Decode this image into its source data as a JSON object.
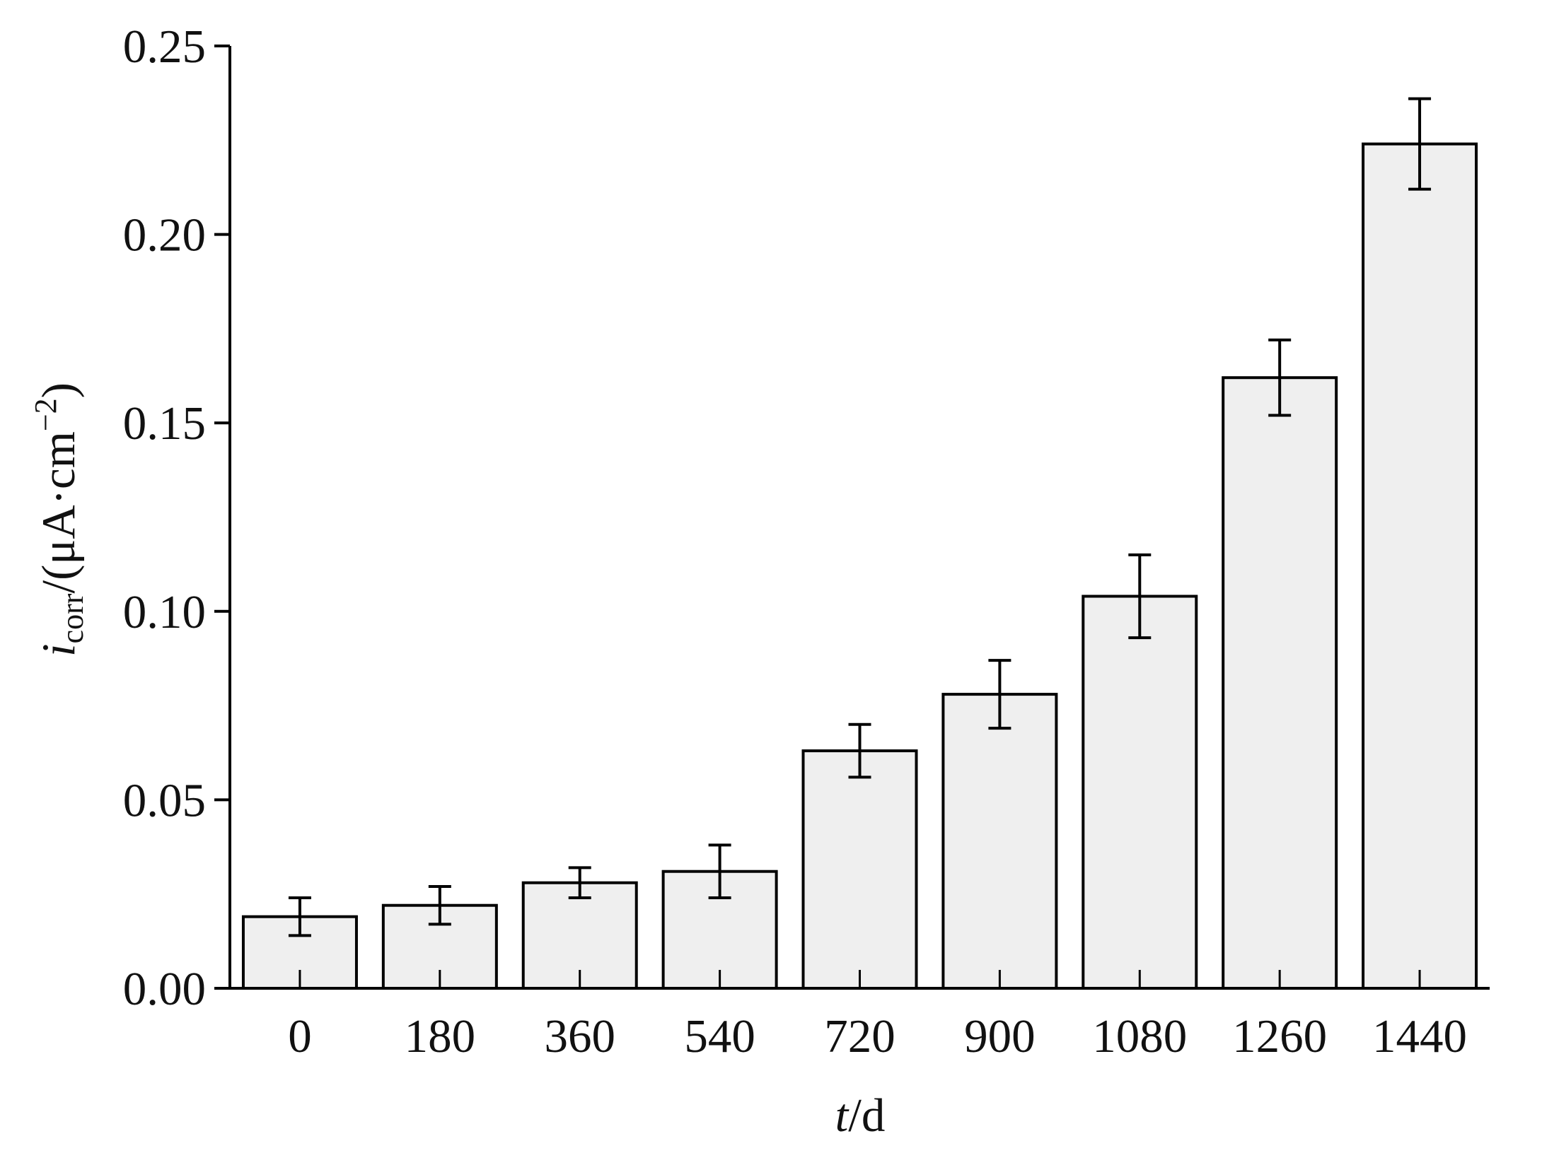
{
  "chart_data": {
    "type": "bar",
    "categories": [
      "0",
      "180",
      "360",
      "540",
      "720",
      "900",
      "1080",
      "1260",
      "1440"
    ],
    "values": [
      0.019,
      0.022,
      0.028,
      0.031,
      0.063,
      0.078,
      0.104,
      0.162,
      0.224
    ],
    "errors": [
      0.005,
      0.005,
      0.004,
      0.007,
      0.007,
      0.009,
      0.011,
      0.01,
      0.012
    ],
    "color": "#efefef",
    "ylim": [
      0,
      0.25
    ],
    "yticks": [
      {
        "value": 0,
        "label": "0.00"
      },
      {
        "value": 0.05,
        "label": "0.05"
      },
      {
        "value": 0.1,
        "label": "0.10"
      },
      {
        "value": 0.15,
        "label": "0.15"
      },
      {
        "value": 0.2,
        "label": "0.20"
      },
      {
        "value": 0.25,
        "label": "0.25"
      }
    ],
    "y_label": {
      "symbol": "i",
      "subscript": "corr",
      "unit": "/(μA·cm",
      "superscript": "−2",
      "close": ")"
    },
    "x_label": {
      "symbol": "t",
      "unit": "/d"
    },
    "grid": false
  }
}
